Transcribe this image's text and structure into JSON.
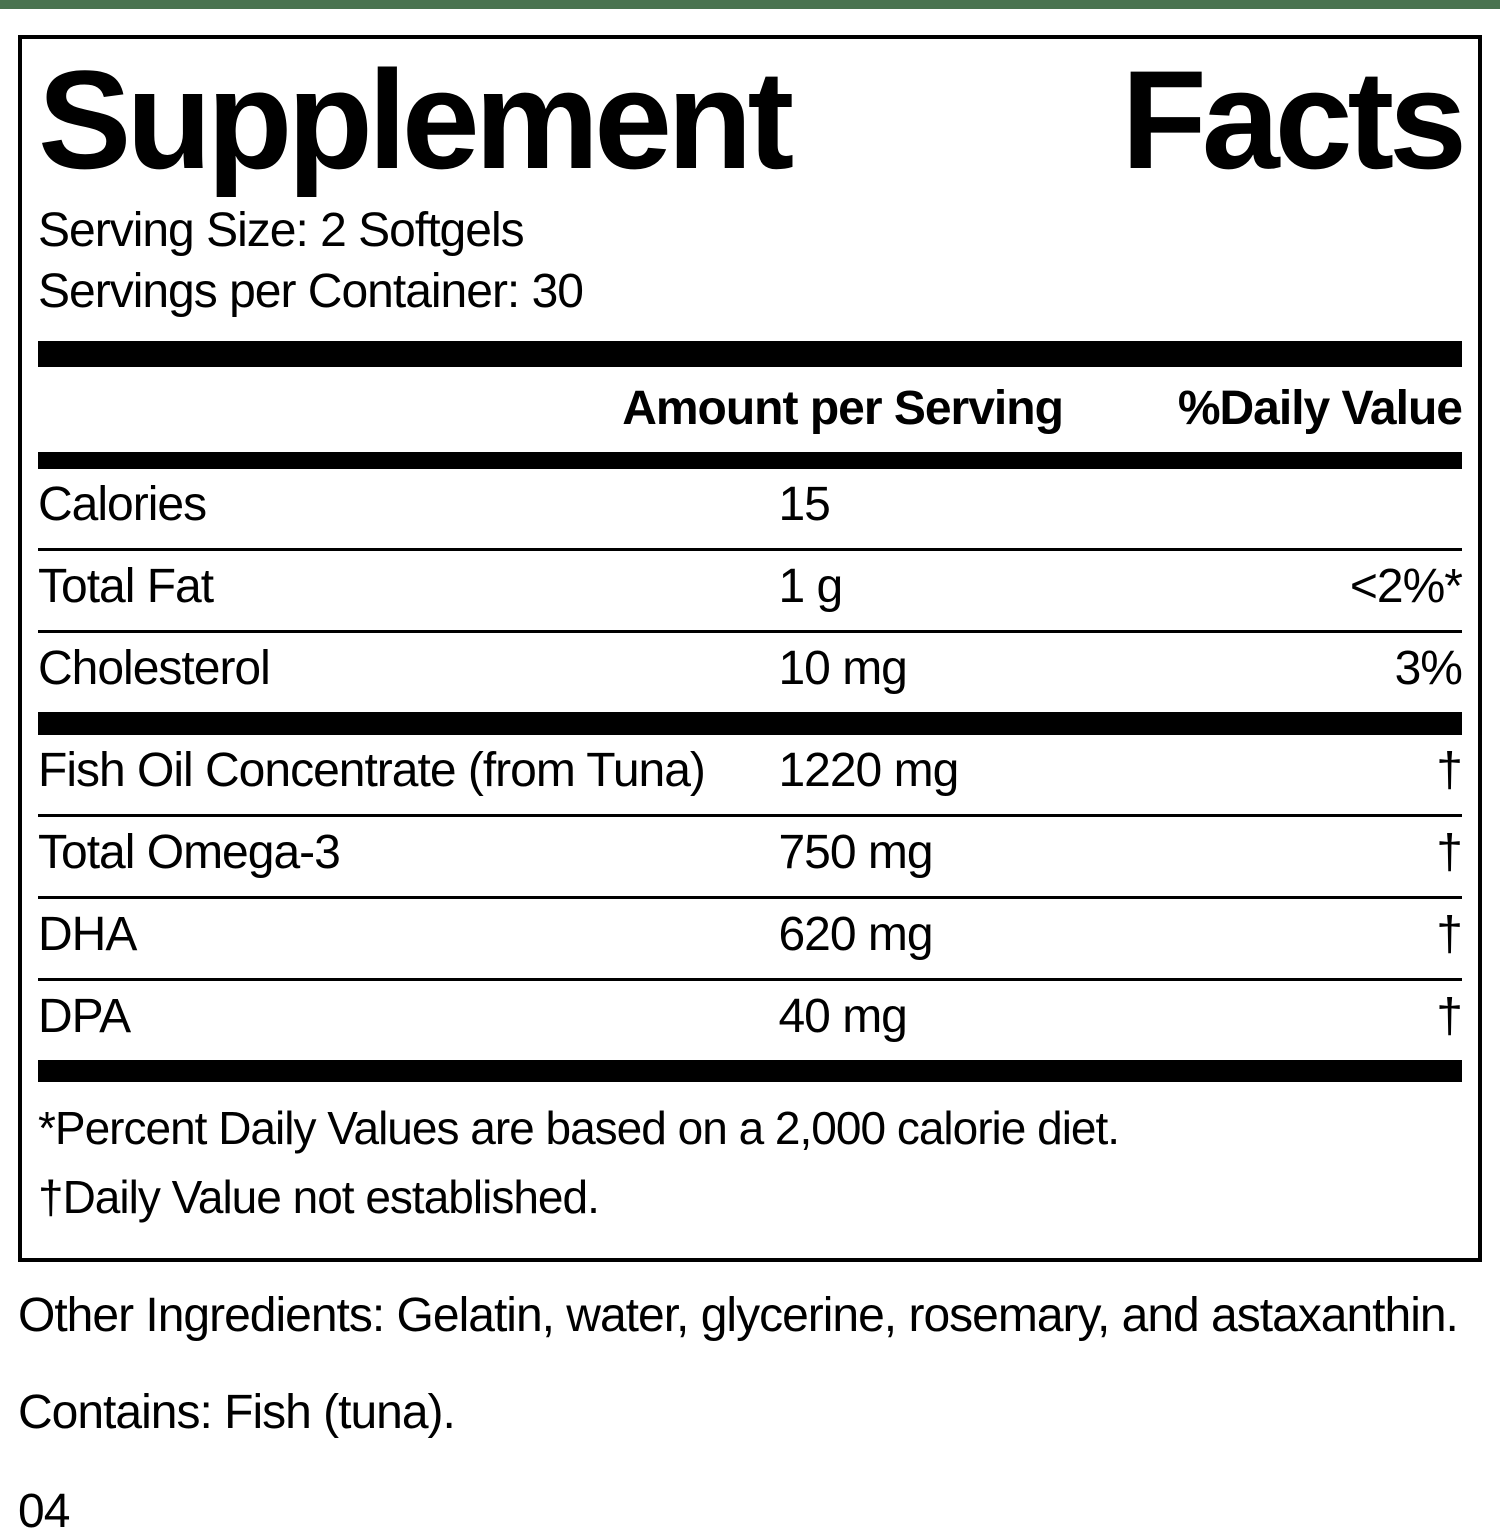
{
  "colors": {
    "top_bar": "#4a7350",
    "text": "#000000",
    "background": "#ffffff"
  },
  "label": {
    "title": {
      "word1": "Supplement",
      "word2": "Facts"
    },
    "serving_size": "Serving Size: 2 Softgels",
    "servings_per_container": "Servings per Container: 30",
    "header": {
      "amount": "Amount per Serving",
      "daily_value": "%Daily Value"
    },
    "rows_top": [
      {
        "name": "Calories",
        "amount": "15",
        "dv": ""
      },
      {
        "name": "Total Fat",
        "amount": "1 g",
        "dv": "<2%*"
      },
      {
        "name": "Cholesterol",
        "amount": "10 mg",
        "dv": "3%"
      }
    ],
    "rows_main": [
      {
        "name": "Fish Oil Concentrate (from Tuna)",
        "amount": "1220 mg",
        "dv": "†"
      },
      {
        "name": "Total Omega-3",
        "amount": "750 mg",
        "dv": "†"
      },
      {
        "name": "DHA",
        "amount": "620 mg",
        "dv": "†"
      },
      {
        "name": "DPA",
        "amount": "40 mg",
        "dv": "†"
      }
    ],
    "footnotes": [
      "*Percent Daily Values are based on a 2,000 calorie diet.",
      "†Daily Value not established."
    ]
  },
  "below": {
    "other_ingredients": "Other Ingredients: Gelatin, water, glycerine, rosemary, and astaxanthin.",
    "contains": "Contains: Fish (tuna).",
    "footer_code": "04"
  }
}
